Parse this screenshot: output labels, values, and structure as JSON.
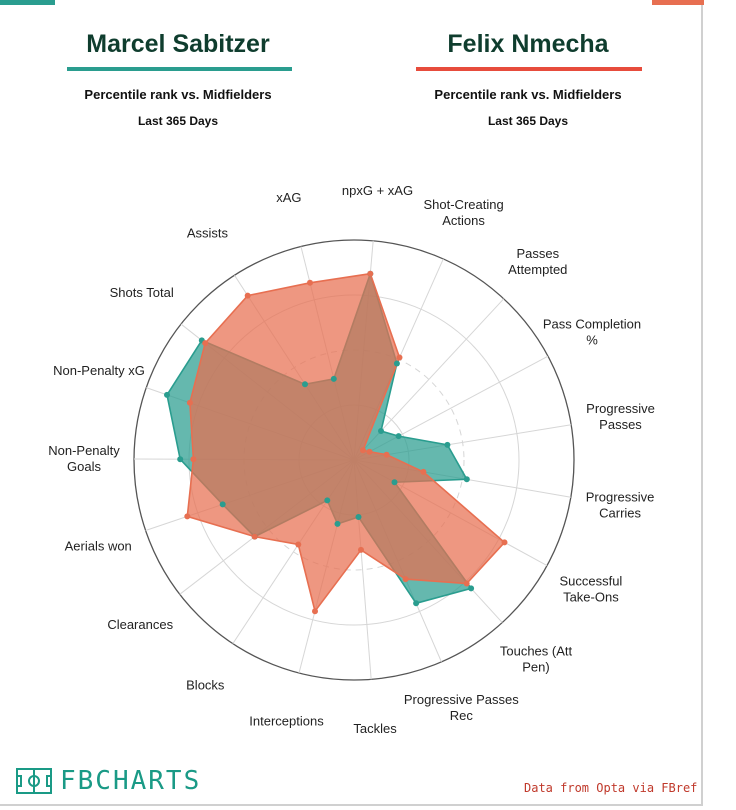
{
  "players": [
    {
      "name": "Marcel Sabitzer",
      "subtitle": "Percentile rank vs. Midfielders",
      "period": "Last 365 Days",
      "color": "#2a9d8f"
    },
    {
      "name": "Felix Nmecha",
      "subtitle": "Percentile rank vs. Midfielders",
      "period": "Last 365 Days",
      "color": "#e76f51"
    }
  ],
  "brand": {
    "logo_text": "FBCHARTS",
    "logo_icon": "pitch-icon"
  },
  "source": "Data from Opta via FBref",
  "chart_data": {
    "type": "radar",
    "rlim": [
      0,
      100
    ],
    "grid": true,
    "categories": [
      "npxG + xAG",
      "Shot-Creating Actions",
      "Passes Attempted",
      "Pass Completion %",
      "Progressive Passes",
      "Progressive Carries",
      "Successful Take-Ons",
      "Touches (Att Pen)",
      "Progressive Passes Rec",
      "Tackles",
      "Interceptions",
      "Blocks",
      "Clearances",
      "Aerials won",
      "Non-Penalty Goals",
      "Non-Penalty xG",
      "Shots Total",
      "Assists",
      "xAG"
    ],
    "series": [
      {
        "name": "Marcel Sabitzer",
        "color": "#2a9d8f",
        "values": [
          85,
          48,
          18,
          23,
          43,
          52,
          21,
          79,
          71,
          26,
          30,
          22,
          57,
          63,
          79,
          90,
          88,
          41,
          38
        ]
      },
      {
        "name": "Felix Nmecha",
        "color": "#e76f51",
        "values": [
          85,
          51,
          6,
          8,
          15,
          32,
          78,
          76,
          59,
          41,
          71,
          46,
          57,
          80,
          73,
          79,
          86,
          89,
          83
        ]
      }
    ]
  }
}
